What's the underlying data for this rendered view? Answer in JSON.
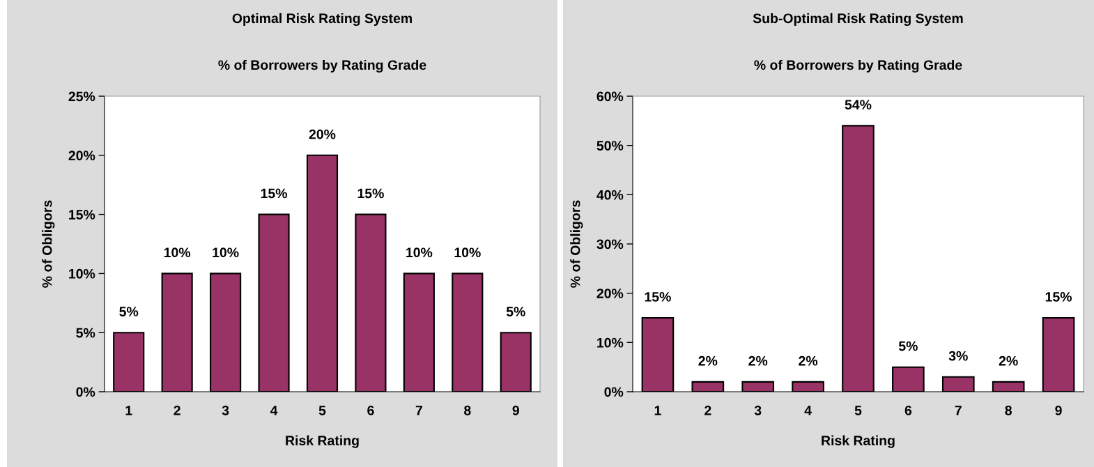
{
  "chart_data": [
    {
      "type": "bar",
      "title": "Optimal Risk Rating System",
      "subtitle": "% of Borrowers by Rating Grade",
      "xlabel": "Risk Rating",
      "ylabel": "% of Obligors",
      "categories": [
        "1",
        "2",
        "3",
        "4",
        "5",
        "6",
        "7",
        "8",
        "9"
      ],
      "values": [
        5,
        10,
        10,
        15,
        20,
        15,
        10,
        10,
        5
      ],
      "value_labels": [
        "5%",
        "10%",
        "10%",
        "15%",
        "20%",
        "15%",
        "10%",
        "10%",
        "5%"
      ],
      "color": "#993366",
      "ylim": [
        0,
        25
      ],
      "yticks": [
        {
          "value": 0,
          "label": "0%"
        },
        {
          "value": 5,
          "label": "5%"
        },
        {
          "value": 10,
          "label": "10%"
        },
        {
          "value": 15,
          "label": "15%"
        },
        {
          "value": 20,
          "label": "20%"
        },
        {
          "value": 25,
          "label": "25%"
        }
      ],
      "grid": false,
      "legend": false
    },
    {
      "type": "bar",
      "title": "Sub-Optimal Risk Rating System",
      "subtitle": "% of Borrowers by Rating Grade",
      "xlabel": "Risk Rating",
      "ylabel": "% of Obligors",
      "categories": [
        "1",
        "2",
        "3",
        "4",
        "5",
        "6",
        "7",
        "8",
        "9"
      ],
      "values": [
        15,
        2,
        2,
        2,
        54,
        5,
        3,
        2,
        15
      ],
      "value_labels": [
        "15%",
        "2%",
        "2%",
        "2%",
        "54%",
        "5%",
        "3%",
        "2%",
        "15%"
      ],
      "color": "#993366",
      "ylim": [
        0,
        60
      ],
      "yticks": [
        {
          "value": 0,
          "label": "0%"
        },
        {
          "value": 10,
          "label": "10%"
        },
        {
          "value": 20,
          "label": "20%"
        },
        {
          "value": 30,
          "label": "30%"
        },
        {
          "value": 40,
          "label": "40%"
        },
        {
          "value": 50,
          "label": "50%"
        },
        {
          "value": 60,
          "label": "60%"
        }
      ],
      "grid": false,
      "legend": false
    }
  ]
}
